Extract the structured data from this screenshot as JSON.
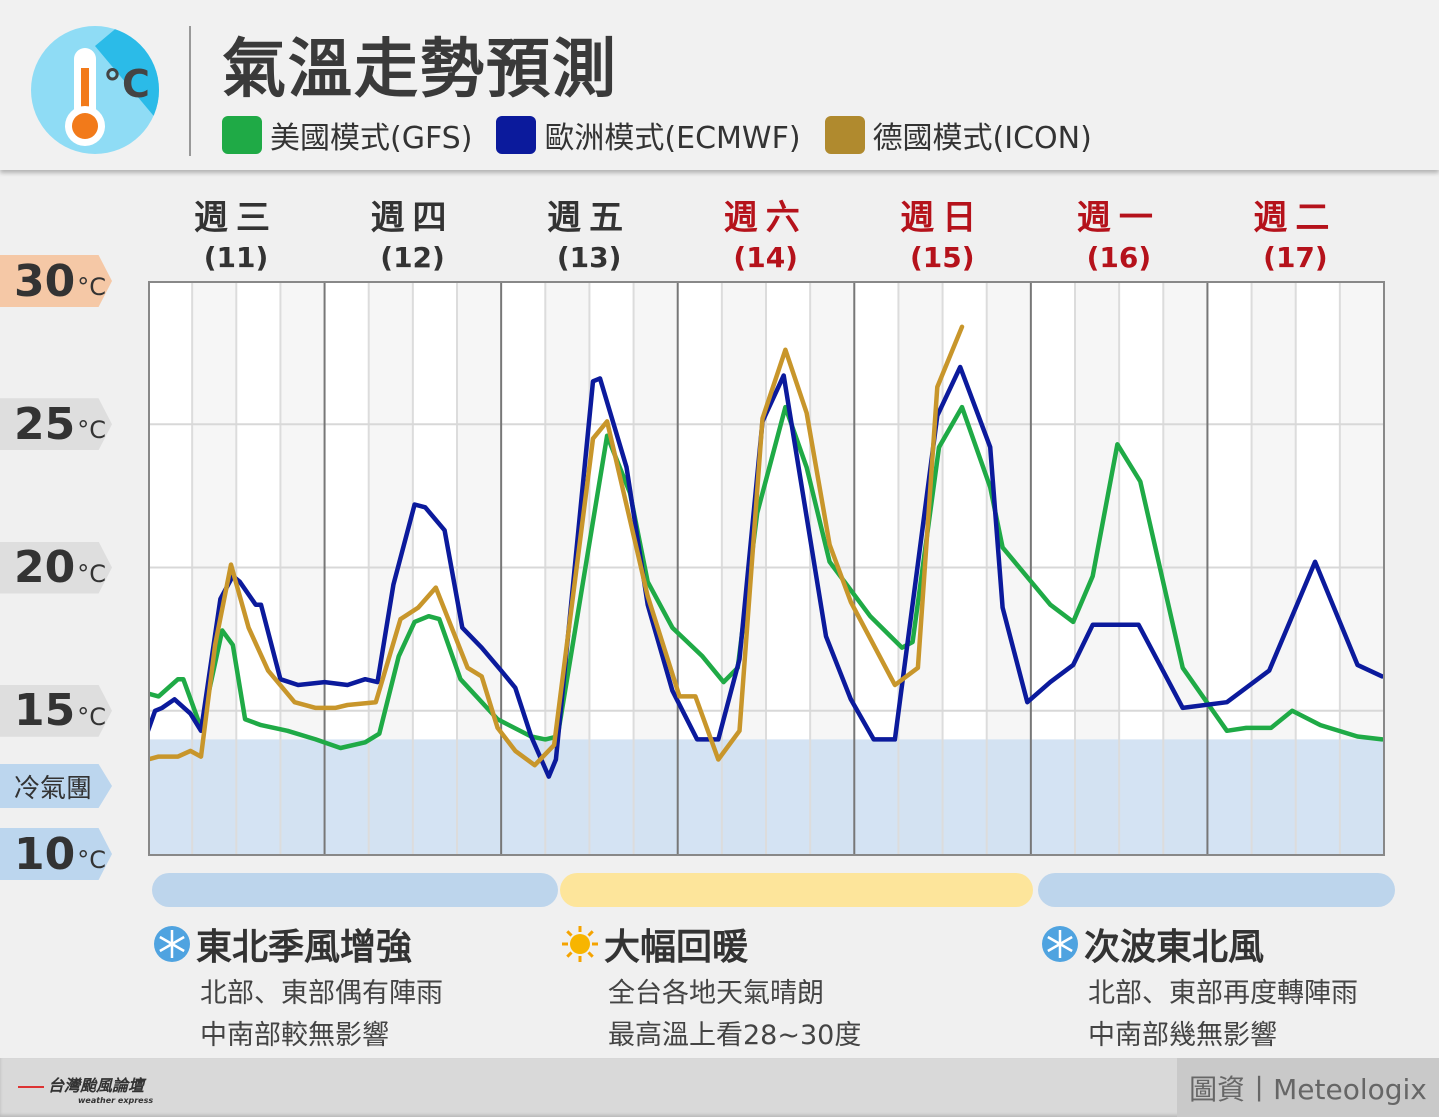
{
  "header": {
    "title": "氣溫走勢預測",
    "icon": "thermometer-celsius-icon"
  },
  "legend": [
    {
      "label": "美國模式(GFS)",
      "color": "#1faa46"
    },
    {
      "label": "歐洲模式(ECMWF)",
      "color": "#0b1a9c"
    },
    {
      "label": "德國模式(ICON)",
      "color": "#c8962b"
    }
  ],
  "days": [
    {
      "weekday": "週三",
      "date": "(11)",
      "weekend": false
    },
    {
      "weekday": "週四",
      "date": "(12)",
      "weekend": false
    },
    {
      "weekday": "週五",
      "date": "(13)",
      "weekend": false
    },
    {
      "weekday": "週六",
      "date": "(14)",
      "weekend": true
    },
    {
      "weekday": "週日",
      "date": "(15)",
      "weekend": true
    },
    {
      "weekday": "週一",
      "date": "(16)",
      "weekend": true
    },
    {
      "weekday": "週二",
      "date": "(17)",
      "weekend": true
    }
  ],
  "y_tags": [
    {
      "value": "30",
      "unit": "°C",
      "color": "#f5c8a6"
    },
    {
      "value": "25",
      "unit": "°C",
      "color": "#dedede"
    },
    {
      "value": "20",
      "unit": "°C",
      "color": "#dedede"
    },
    {
      "value": "15",
      "unit": "°C",
      "color": "#dedede"
    },
    {
      "value": "10",
      "unit": "°C",
      "color": "#bcd6ee"
    }
  ],
  "cold_label": "冷氣團",
  "chart_data": {
    "type": "line",
    "x_unit": "day of month",
    "xlim": [
      11,
      18
    ],
    "ylim": [
      10,
      30
    ],
    "yticks": [
      10,
      15,
      20,
      25,
      30
    ],
    "grid": true,
    "cold_air_band": {
      "from": 10,
      "to": 14,
      "label": "冷氣團",
      "color": "#cfe0f2"
    },
    "series": [
      {
        "name": "美國模式(GFS)",
        "color": "#1faa46",
        "points": [
          [
            11.0,
            15.6
          ],
          [
            11.06,
            15.5
          ],
          [
            11.17,
            16.1
          ],
          [
            11.2,
            16.1
          ],
          [
            11.3,
            14.4
          ],
          [
            11.42,
            17.8
          ],
          [
            11.48,
            17.3
          ],
          [
            11.55,
            14.7
          ],
          [
            11.64,
            14.5
          ],
          [
            11.79,
            14.3
          ],
          [
            11.95,
            14.0
          ],
          [
            12.09,
            13.7
          ],
          [
            12.23,
            13.9
          ],
          [
            12.31,
            14.2
          ],
          [
            12.42,
            16.9
          ],
          [
            12.51,
            18.1
          ],
          [
            12.59,
            18.3
          ],
          [
            12.65,
            18.2
          ],
          [
            12.77,
            16.1
          ],
          [
            12.98,
            14.7
          ],
          [
            13.17,
            14.1
          ],
          [
            13.25,
            14.0
          ],
          [
            13.32,
            14.1
          ],
          [
            13.6,
            24.6
          ],
          [
            13.73,
            22.6
          ],
          [
            13.83,
            19.5
          ],
          [
            13.97,
            17.9
          ],
          [
            14.14,
            16.9
          ],
          [
            14.26,
            16.0
          ],
          [
            14.34,
            16.5
          ],
          [
            14.45,
            21.9
          ],
          [
            14.61,
            25.6
          ],
          [
            14.73,
            23.5
          ],
          [
            14.86,
            20.2
          ],
          [
            15.09,
            18.3
          ],
          [
            15.27,
            17.2
          ],
          [
            15.33,
            17.4
          ],
          [
            15.48,
            24.2
          ],
          [
            15.61,
            25.6
          ],
          [
            15.77,
            22.8
          ],
          [
            15.84,
            20.7
          ],
          [
            16.11,
            18.7
          ],
          [
            16.24,
            18.1
          ],
          [
            16.35,
            19.7
          ],
          [
            16.49,
            24.3
          ],
          [
            16.62,
            23.0
          ],
          [
            16.86,
            16.5
          ],
          [
            17.11,
            14.3
          ],
          [
            17.22,
            14.4
          ],
          [
            17.36,
            14.4
          ],
          [
            17.48,
            15.0
          ],
          [
            17.64,
            14.5
          ],
          [
            17.85,
            14.1
          ],
          [
            17.99,
            14.0
          ]
        ]
      },
      {
        "name": "歐洲模式(ECMWF)",
        "color": "#0b1a9c",
        "points": [
          [
            11.0,
            14.3
          ],
          [
            11.04,
            15.0
          ],
          [
            11.08,
            15.1
          ],
          [
            11.15,
            15.4
          ],
          [
            11.24,
            14.9
          ],
          [
            11.3,
            14.3
          ],
          [
            11.41,
            18.9
          ],
          [
            11.48,
            19.7
          ],
          [
            11.52,
            19.5
          ],
          [
            11.61,
            18.7
          ],
          [
            11.64,
            18.7
          ],
          [
            11.75,
            16.1
          ],
          [
            11.85,
            15.9
          ],
          [
            12.0,
            16.0
          ],
          [
            12.13,
            15.9
          ],
          [
            12.23,
            16.1
          ],
          [
            12.3,
            16.0
          ],
          [
            12.39,
            19.4
          ],
          [
            12.51,
            22.2
          ],
          [
            12.57,
            22.1
          ],
          [
            12.68,
            21.3
          ],
          [
            12.78,
            17.9
          ],
          [
            12.89,
            17.2
          ],
          [
            13.0,
            16.4
          ],
          [
            13.08,
            15.8
          ],
          [
            13.17,
            14.1
          ],
          [
            13.27,
            12.7
          ],
          [
            13.31,
            13.3
          ],
          [
            13.52,
            26.5
          ],
          [
            13.56,
            26.6
          ],
          [
            13.71,
            23.5
          ],
          [
            13.83,
            18.7
          ],
          [
            13.97,
            15.7
          ],
          [
            14.11,
            14.0
          ],
          [
            14.23,
            14.0
          ],
          [
            14.35,
            16.8
          ],
          [
            14.48,
            25.1
          ],
          [
            14.6,
            26.7
          ],
          [
            14.84,
            17.6
          ],
          [
            14.98,
            15.4
          ],
          [
            15.11,
            14.0
          ],
          [
            15.23,
            14.0
          ],
          [
            15.47,
            25.3
          ],
          [
            15.6,
            27.0
          ],
          [
            15.77,
            24.2
          ],
          [
            15.84,
            18.6
          ],
          [
            15.98,
            15.3
          ],
          [
            16.11,
            16.0
          ],
          [
            16.24,
            16.6
          ],
          [
            16.35,
            18.0
          ],
          [
            16.61,
            18.0
          ],
          [
            16.86,
            15.1
          ],
          [
            17.11,
            15.3
          ],
          [
            17.35,
            16.4
          ],
          [
            17.61,
            20.2
          ],
          [
            17.85,
            16.6
          ],
          [
            17.99,
            16.2
          ]
        ]
      },
      {
        "name": "德國模式(ICON)",
        "color": "#c8962b",
        "points": [
          [
            11.0,
            13.3
          ],
          [
            11.06,
            13.4
          ],
          [
            11.17,
            13.4
          ],
          [
            11.24,
            13.6
          ],
          [
            11.3,
            13.4
          ],
          [
            11.38,
            17.3
          ],
          [
            11.47,
            20.1
          ],
          [
            11.57,
            17.9
          ],
          [
            11.68,
            16.4
          ],
          [
            11.83,
            15.3
          ],
          [
            11.95,
            15.1
          ],
          [
            12.06,
            15.1
          ],
          [
            12.13,
            15.2
          ],
          [
            12.29,
            15.3
          ],
          [
            12.43,
            18.2
          ],
          [
            12.53,
            18.6
          ],
          [
            12.63,
            19.3
          ],
          [
            12.81,
            16.5
          ],
          [
            12.89,
            16.2
          ],
          [
            12.98,
            14.4
          ],
          [
            13.08,
            13.6
          ],
          [
            13.19,
            13.1
          ],
          [
            13.3,
            13.8
          ],
          [
            13.52,
            24.5
          ],
          [
            13.6,
            25.1
          ],
          [
            13.83,
            19.0
          ],
          [
            14.01,
            15.5
          ],
          [
            14.1,
            15.5
          ],
          [
            14.23,
            13.3
          ],
          [
            14.35,
            14.3
          ],
          [
            14.48,
            25.2
          ],
          [
            14.61,
            27.6
          ],
          [
            14.73,
            25.4
          ],
          [
            14.86,
            20.8
          ],
          [
            14.98,
            18.8
          ],
          [
            15.23,
            15.9
          ],
          [
            15.36,
            16.5
          ],
          [
            15.47,
            26.3
          ],
          [
            15.61,
            28.4
          ]
        ]
      }
    ]
  },
  "periods": [
    {
      "color": "#bdd5ec",
      "icon": "snowflake-icon",
      "title": "東北季風增強",
      "lines": [
        "北部、東部偶有陣雨",
        "中南部較無影響"
      ]
    },
    {
      "color": "#fde59b",
      "icon": "sun-icon",
      "title": "大幅回暖",
      "lines": [
        "全台各地天氣晴朗",
        "最高溫上看28~30度"
      ]
    },
    {
      "color": "#bdd5ec",
      "icon": "snowflake-icon",
      "title": "次波東北風",
      "lines": [
        "北部、東部再度轉陣雨",
        "中南部幾無影響"
      ]
    }
  ],
  "footer": {
    "brand": "台灣颱風論壇",
    "brand_sub": "weather express",
    "credit": "圖資丨Meteologix"
  }
}
